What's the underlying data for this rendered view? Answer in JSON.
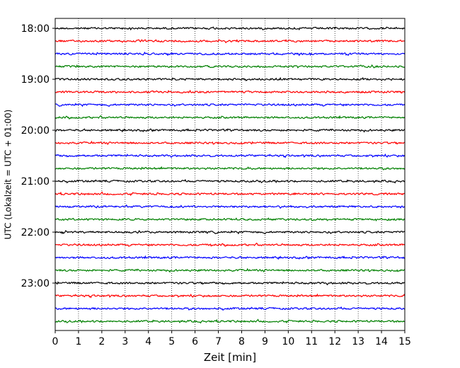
{
  "chart_data": {
    "type": "line",
    "title": "",
    "xlabel": "Zeit  [min]",
    "ylabel": "UTC (Lokalzeit = UTC + 01:00)",
    "xlim": [
      0,
      15
    ],
    "x_ticks": [
      "0",
      "1",
      "2",
      "3",
      "4",
      "5",
      "6",
      "7",
      "8",
      "9",
      "10",
      "11",
      "12",
      "13",
      "14",
      "15"
    ],
    "y_ticks": [
      "18:00",
      "19:00",
      "20:00",
      "21:00",
      "22:00",
      "23:00"
    ],
    "grid": "vertical dotted at each minute",
    "trace_colors": [
      "#000000",
      "#ff0000",
      "#0000ff",
      "#008000"
    ],
    "trace_interval_min": 15,
    "rows": [
      "18:00",
      "18:15",
      "18:30",
      "18:45",
      "19:00",
      "19:15",
      "19:30",
      "19:45",
      "20:00",
      "20:15",
      "20:30",
      "20:45",
      "21:00",
      "21:15",
      "21:30",
      "21:45",
      "22:00",
      "22:15",
      "22:30",
      "22:45",
      "23:00",
      "23:15",
      "23:30",
      "23:45"
    ],
    "trace_amplitude": "low-level noise, roughly constant across all rows"
  }
}
